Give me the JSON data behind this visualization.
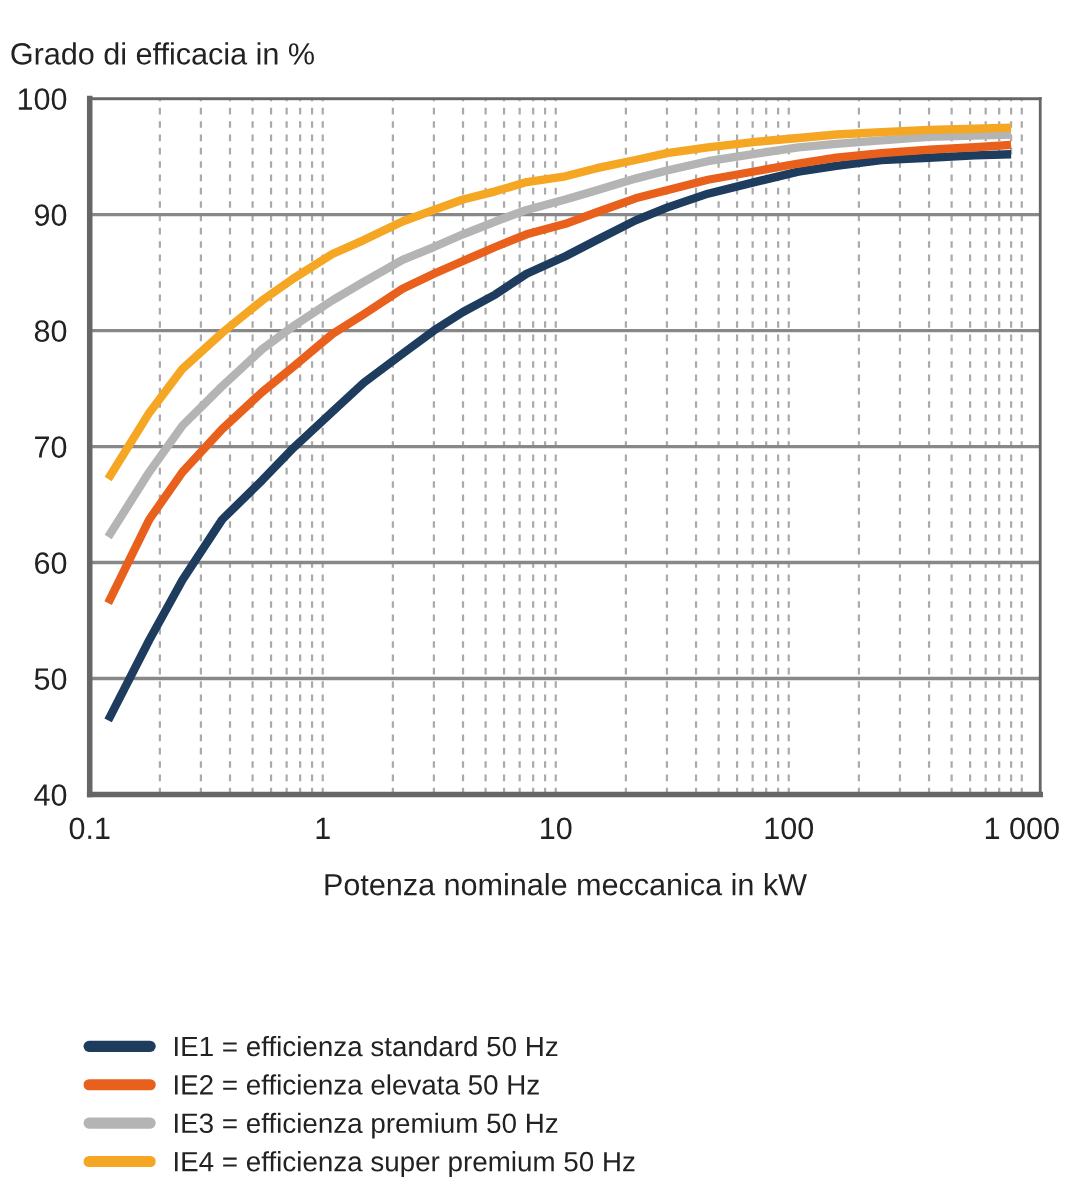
{
  "chart_data": {
    "type": "line",
    "ylabel": "Grado di efficacia in %",
    "xlabel": "Potenza nominale meccanica in kW",
    "x": [
      0.12,
      0.18,
      0.25,
      0.37,
      0.55,
      0.75,
      1.1,
      1.5,
      2.2,
      3,
      4,
      5.5,
      7.5,
      11,
      15,
      22,
      30,
      45,
      75,
      110,
      160,
      250,
      400,
      630,
      900
    ],
    "series": [
      {
        "name": "IE1 = efficienza standard 50 Hz",
        "color": "#1d3c5e",
        "values": [
          46.4,
          53.3,
          58.5,
          63.7,
          67.1,
          69.9,
          73.0,
          75.5,
          78.0,
          80.0,
          81.6,
          83.1,
          84.9,
          86.4,
          87.8,
          89.5,
          90.6,
          91.8,
          92.9,
          93.7,
          94.2,
          94.7,
          94.9,
          95.1,
          95.2
        ]
      },
      {
        "name": "IE2 = efficienza elevata 50 Hz",
        "color": "#e8601c",
        "values": [
          56.5,
          63.7,
          67.8,
          71.5,
          74.7,
          76.9,
          79.7,
          81.4,
          83.6,
          84.9,
          86.0,
          87.2,
          88.3,
          89.2,
          90.2,
          91.4,
          92.1,
          93.0,
          93.8,
          94.4,
          94.9,
          95.3,
          95.6,
          95.8,
          96.0
        ]
      },
      {
        "name": "IE3 = efficienza premium 50 Hz",
        "color": "#b4b4b4",
        "values": [
          62.2,
          67.8,
          71.8,
          75.2,
          78.4,
          80.4,
          82.6,
          84.2,
          86.1,
          87.2,
          88.3,
          89.4,
          90.4,
          91.3,
          92.1,
          93.1,
          93.8,
          94.6,
          95.3,
          95.8,
          96.1,
          96.4,
          96.7,
          96.8,
          96.9
        ]
      },
      {
        "name": "IE4 = efficienza super premium 50 Hz",
        "color": "#f5a623",
        "values": [
          67.2,
          72.9,
          76.7,
          79.8,
          82.6,
          84.5,
          86.6,
          87.8,
          89.4,
          90.4,
          91.3,
          92.0,
          92.8,
          93.3,
          94.0,
          94.7,
          95.3,
          95.8,
          96.3,
          96.6,
          96.9,
          97.1,
          97.3,
          97.4,
          97.5
        ]
      }
    ],
    "log": "x",
    "xlim": [
      0.1,
      1200
    ],
    "xticks": [
      0.1,
      1,
      10,
      100,
      {
        "value": 1000,
        "label": "1 000"
      }
    ],
    "ylim": [
      40,
      100
    ],
    "yticks": [
      40,
      50,
      60,
      70,
      80,
      90,
      100
    ],
    "grid": true,
    "legend": "bottom",
    "marker": "none",
    "line_style": "solid"
  }
}
